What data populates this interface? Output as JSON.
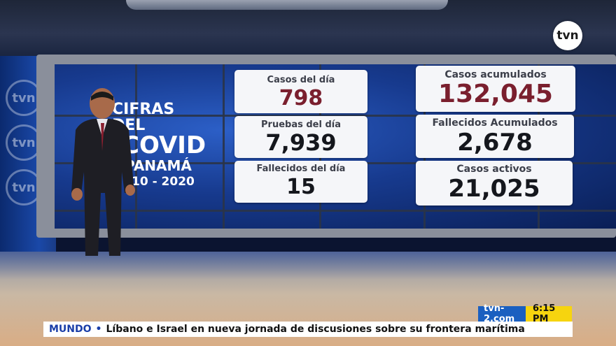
{
  "logo": {
    "text": "tvn"
  },
  "side_logos": [
    "tvn",
    "tvn",
    "tvn"
  ],
  "title": {
    "line1": "CIFRAS DEL",
    "line2": "COVID",
    "line3": "PANAMÁ",
    "line4": "10 - 2020"
  },
  "stats": {
    "casos_dia": {
      "label": "Casos del día",
      "value": "798",
      "color": "#7a1f2e"
    },
    "pruebas_dia": {
      "label": "Pruebas del día",
      "value": "7,939",
      "color": "#15171d"
    },
    "fallecidos_dia": {
      "label": "Fallecidos del día",
      "value": "15",
      "color": "#15171d"
    },
    "casos_acumulados": {
      "label": "Casos acumulados",
      "value": "132,045",
      "color": "#7a1f2e"
    },
    "fallecidos_acumulados": {
      "label": "Fallecidos Acumulados",
      "value": "2,678",
      "color": "#15171d"
    },
    "casos_activos": {
      "label": "Casos activos",
      "value": "21,025",
      "color": "#15171d"
    }
  },
  "lower_third": {
    "site": "tvn-2.com",
    "time": "6:15 PM",
    "category": "MUNDO",
    "bullet": "•",
    "headline": "Líbano e Israel en nueva jornada de discusiones sobre su frontera marítima"
  },
  "colors": {
    "accent_blue": "#1a5fc0",
    "accent_yellow": "#f6d40f",
    "value_red": "#7a1f2e"
  }
}
